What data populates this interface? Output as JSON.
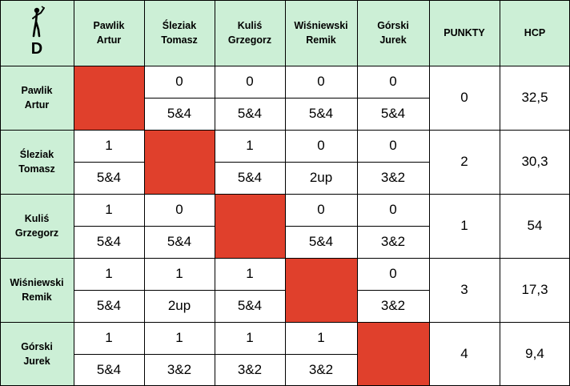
{
  "corner": {
    "icon": "golfer-icon",
    "group_letter": "D"
  },
  "columns": [
    "Pawlik\nArtur",
    "Śleziak\nTomasz",
    "Kuliś\nGrzegorz",
    "Wiśniewski\nRemik",
    "Górski\nJurek",
    "PUNKTY",
    "HCP"
  ],
  "colors": {
    "header_bg": "#ccefd6",
    "blocked": "#e0402c",
    "grid": "#000000"
  },
  "rows": [
    {
      "name": "Pawlik\nArtur",
      "results": [
        null,
        {
          "point": "0",
          "score": "5&4"
        },
        {
          "point": "0",
          "score": "5&4"
        },
        {
          "point": "0",
          "score": "5&4"
        },
        {
          "point": "0",
          "score": "5&4"
        }
      ],
      "points": "0",
      "hcp": "32,5"
    },
    {
      "name": "Śleziak\nTomasz",
      "results": [
        {
          "point": "1",
          "score": "5&4"
        },
        null,
        {
          "point": "1",
          "score": "5&4"
        },
        {
          "point": "0",
          "score": "2up"
        },
        {
          "point": "0",
          "score": "3&2"
        }
      ],
      "points": "2",
      "hcp": "30,3"
    },
    {
      "name": "Kuliś\nGrzegorz",
      "results": [
        {
          "point": "1",
          "score": "5&4"
        },
        {
          "point": "0",
          "score": "5&4"
        },
        null,
        {
          "point": "0",
          "score": "5&4"
        },
        {
          "point": "0",
          "score": "3&2"
        }
      ],
      "points": "1",
      "hcp": "54"
    },
    {
      "name": "Wiśniewski\nRemik",
      "results": [
        {
          "point": "1",
          "score": "5&4"
        },
        {
          "point": "1",
          "score": "2up"
        },
        {
          "point": "1",
          "score": "5&4"
        },
        null,
        {
          "point": "0",
          "score": "3&2"
        }
      ],
      "points": "3",
      "hcp": "17,3"
    },
    {
      "name": "Górski\nJurek",
      "results": [
        {
          "point": "1",
          "score": "5&4"
        },
        {
          "point": "1",
          "score": "3&2"
        },
        {
          "point": "1",
          "score": "3&2"
        },
        {
          "point": "1",
          "score": "3&2"
        },
        null
      ],
      "points": "4",
      "hcp": "9,4"
    }
  ]
}
